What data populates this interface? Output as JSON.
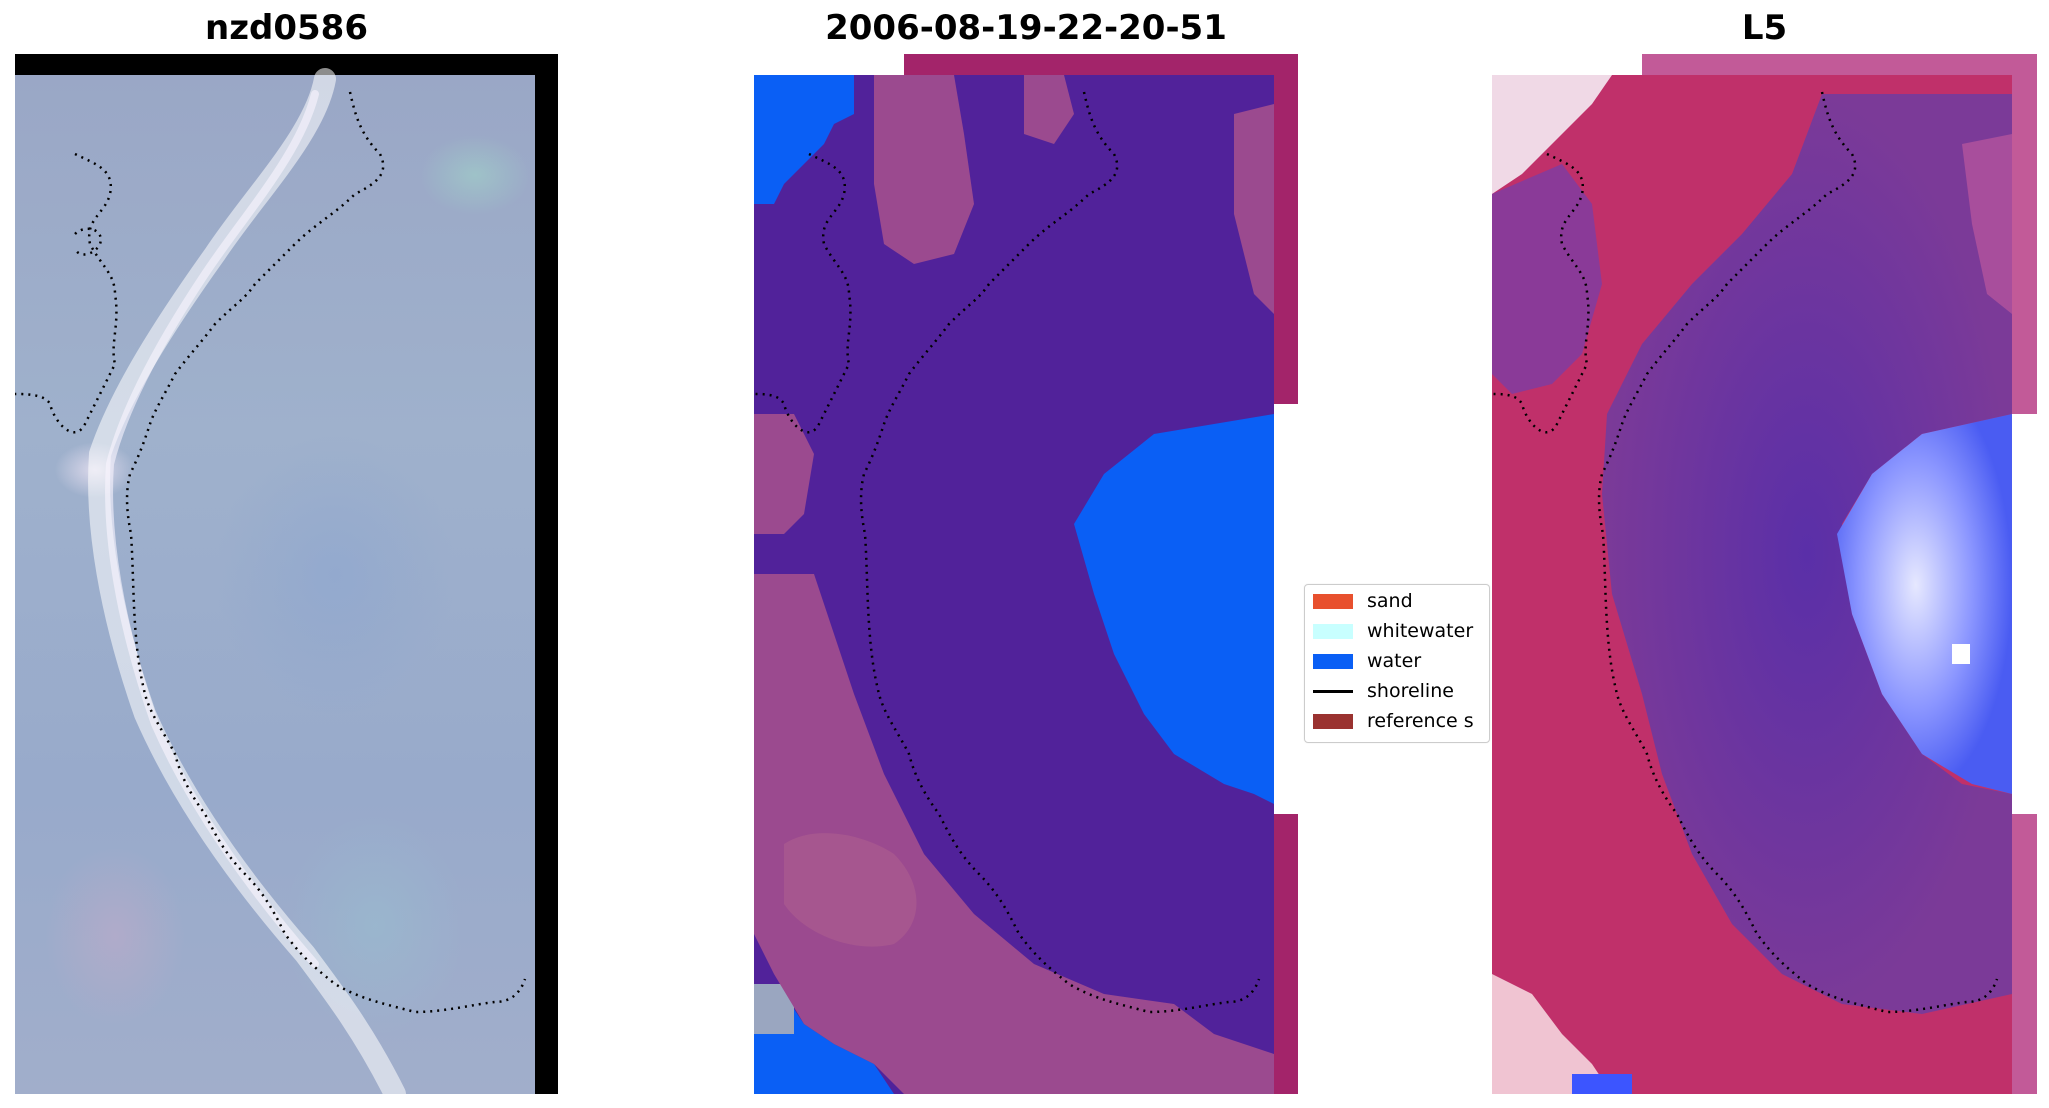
{
  "panels": [
    {
      "title": "nzd0586"
    },
    {
      "title": "2006-08-19-22-20-51"
    },
    {
      "title": "L5"
    }
  ],
  "legend": {
    "items": [
      {
        "label": "sand",
        "color": "#e8502e",
        "kind": "patch"
      },
      {
        "label": "whitewater",
        "color": "#c8ffff",
        "kind": "patch"
      },
      {
        "label": "water",
        "color": "#0a5ff5",
        "kind": "patch"
      },
      {
        "label": "shoreline",
        "color": "#000000",
        "kind": "line"
      },
      {
        "label": "reference s",
        "color": "#9a3230",
        "kind": "patch"
      }
    ]
  },
  "colors": {
    "class_other": "#51229a",
    "class_water": "#0a5ff5",
    "class_land": "#9b4a8f",
    "border_magenta": "#a3246a",
    "heat_red": "#c81e4a",
    "heat_purple": "#6a3aa8",
    "heat_blue": "#3c55ff"
  }
}
